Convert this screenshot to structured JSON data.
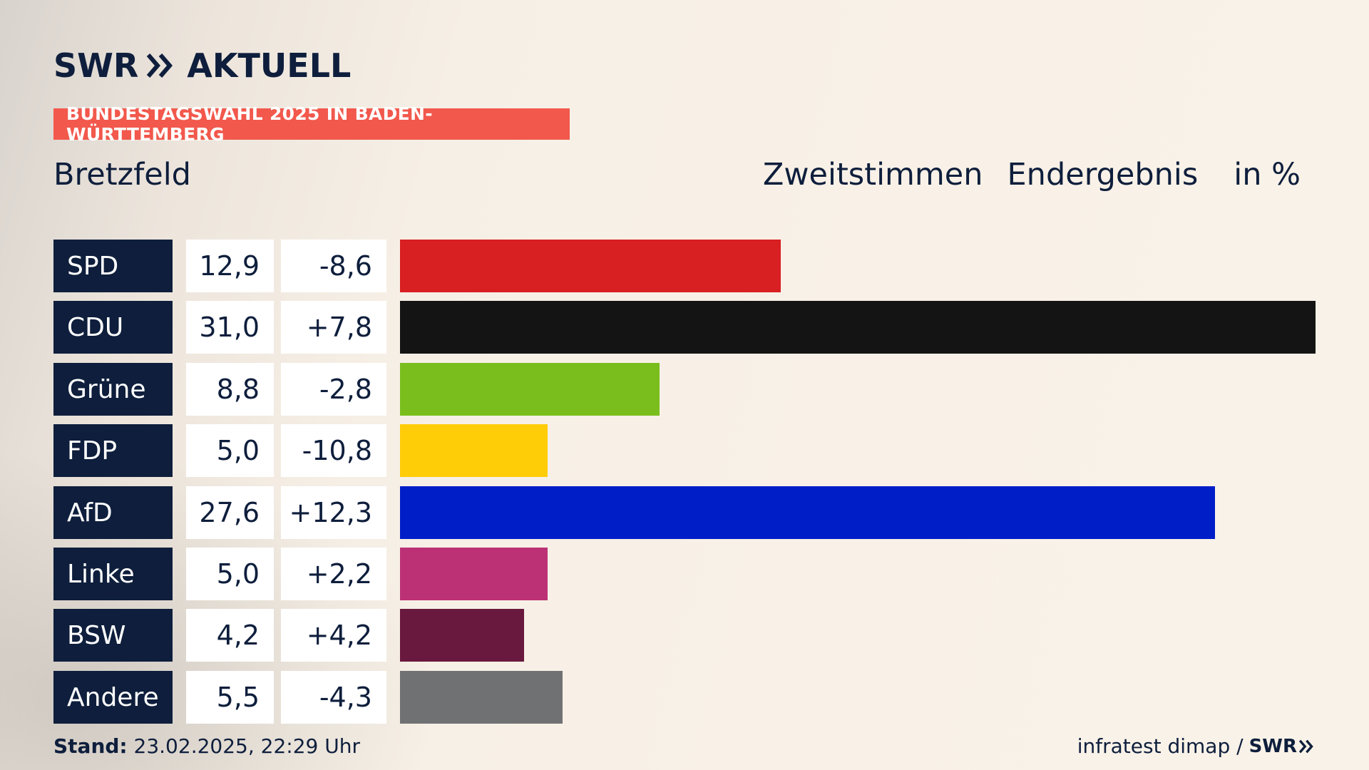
{
  "brand": {
    "name": "SWR",
    "product": "AKTUELL",
    "color": "#0e1e3c"
  },
  "banner": {
    "text": "BUNDESTAGSWAHL 2025 IN BADEN-WÜRTTEMBERG",
    "color": "#f2584c"
  },
  "header": {
    "place": "Bretzfeld",
    "vote_type": "Zweitstimmen",
    "result_type": "Endergebnis",
    "unit": "in %"
  },
  "chart_data": {
    "type": "bar",
    "orientation": "horizontal",
    "categories": [
      "SPD",
      "CDU",
      "Grüne",
      "FDP",
      "AfD",
      "Linke",
      "BSW",
      "Andere"
    ],
    "values": [
      12.9,
      31.0,
      8.8,
      5.0,
      27.6,
      5.0,
      4.2,
      5.5
    ],
    "values_text": [
      "12,9",
      "31,0",
      "8,8",
      "5,0",
      "27,6",
      "5,0",
      "4,2",
      "5,5"
    ],
    "changes": [
      -8.6,
      7.8,
      -2.8,
      -10.8,
      12.3,
      2.2,
      4.2,
      -4.3
    ],
    "changes_text": [
      "-8,6",
      "+7,8",
      "-2,8",
      "-10,8",
      "+12,3",
      "+2,2",
      "+4,2",
      "-4,3"
    ],
    "colors": [
      "#d81f22",
      "#141414",
      "#7abe1e",
      "#ffcc08",
      "#001ec8",
      "#bc3176",
      "#6a193e",
      "#707173"
    ],
    "xlim": [
      0,
      31.0
    ],
    "grid": false,
    "legend": "none"
  },
  "footer": {
    "stand_label": "Stand:",
    "stand_value": "23.02.2025, 22:29 Uhr",
    "source": "infratest dimap /",
    "source_logo": "SWR"
  }
}
